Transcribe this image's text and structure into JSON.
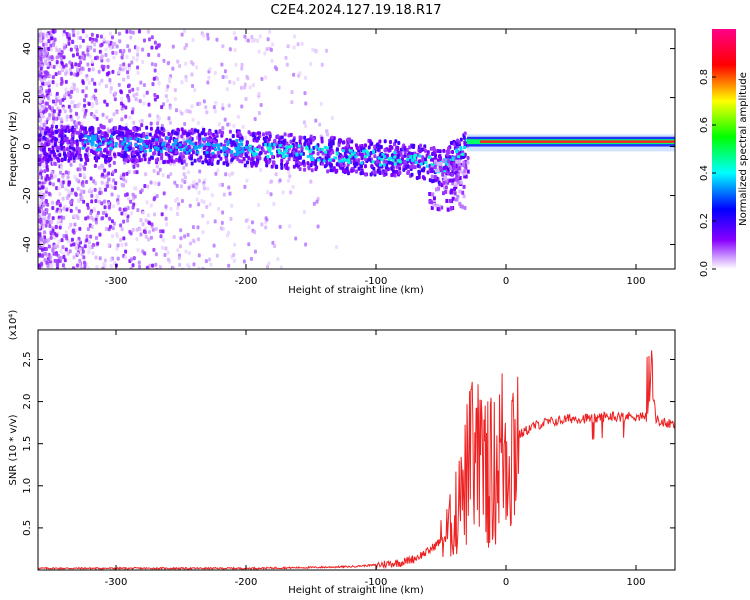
{
  "figure_title": "C2E4.2024.127.19.18.R17",
  "colors": {
    "snr_line": "#ee2222",
    "frame": "#000000"
  },
  "chart_data": [
    {
      "type": "heatmap",
      "title": "",
      "xlabel": "Height of straight line (km)",
      "ylabel": "Frequency (Hz)",
      "xlim": [
        -360,
        130
      ],
      "ylim": [
        -50,
        48
      ],
      "xticks": [
        -300,
        -200,
        -100,
        0,
        100
      ],
      "xtick_labels": [
        "-300",
        "-200",
        "-100",
        "0",
        "100"
      ],
      "yticks": [
        -40,
        -20,
        0,
        20,
        40
      ],
      "ytick_labels": [
        "-40",
        "-20",
        "0",
        "20",
        "40"
      ],
      "colorbar": {
        "label": "Normalized spectral amplitude",
        "range": [
          0,
          1
        ],
        "ticks": [
          0.0,
          0.2,
          0.4,
          0.6,
          0.8
        ],
        "tick_labels": [
          "0.0",
          "0.2",
          "0.4",
          "0.6",
          "0.8"
        ],
        "colormap": [
          "#ffffff",
          "#8800ff",
          "#0000ff",
          "#00ffff",
          "#00ff00",
          "#ffff00",
          "#ff0000",
          "#ff0088"
        ]
      },
      "ridge": [
        {
          "x": -360,
          "y": 2
        },
        {
          "x": -300,
          "y": 2
        },
        {
          "x": -250,
          "y": 1
        },
        {
          "x": -200,
          "y": 0
        },
        {
          "x": -150,
          "y": -2
        },
        {
          "x": -100,
          "y": -4
        },
        {
          "x": -80,
          "y": -4
        },
        {
          "x": -60,
          "y": -6
        },
        {
          "x": -50,
          "y": -8
        },
        {
          "x": -40,
          "y": -3
        },
        {
          "x": -30,
          "y": 1
        },
        {
          "x": -20,
          "y": 2
        },
        {
          "x": 0,
          "y": 2
        },
        {
          "x": 50,
          "y": 2
        },
        {
          "x": 80,
          "y": 2
        },
        {
          "x": 90,
          "y": 3
        },
        {
          "x": 100,
          "y": 1
        },
        {
          "x": 110,
          "y": 1
        },
        {
          "x": 130,
          "y": 1
        }
      ],
      "grid": false
    },
    {
      "type": "line",
      "title": "",
      "xlabel": "Height of straight line (km)",
      "ylabel": "SNR (10 * v/v)",
      "yscale_label": "(x10⁴)",
      "xlim": [
        -360,
        130
      ],
      "ylim": [
        0,
        2.85
      ],
      "xticks": [
        -300,
        -200,
        -100,
        0,
        100
      ],
      "xtick_labels": [
        "-300",
        "-200",
        "-100",
        "0",
        "100"
      ],
      "yticks": [
        0.5,
        1.0,
        1.5,
        2.0,
        2.5
      ],
      "ytick_labels": [
        "0.5",
        "1.0",
        "1.5",
        "2.0",
        "2.5"
      ],
      "series": [
        {
          "values_x": [
            -360,
            -300,
            -200,
            -150,
            -120,
            -100,
            -80,
            -70,
            -60,
            -50,
            -45,
            -40,
            -35,
            -30,
            -25,
            -20,
            -15,
            -10,
            -5,
            0,
            5,
            10,
            20,
            30,
            40,
            50,
            60,
            70,
            75,
            80,
            90,
            100,
            105,
            110,
            112,
            115,
            120,
            130
          ],
          "values_y": [
            0.02,
            0.02,
            0.02,
            0.03,
            0.04,
            0.06,
            0.09,
            0.14,
            0.22,
            0.35,
            0.45,
            0.6,
            0.8,
            1.1,
            1.4,
            1.2,
            1.3,
            1.1,
            1.4,
            1.45,
            1.55,
            1.6,
            1.7,
            1.75,
            1.77,
            1.8,
            1.8,
            1.8,
            1.82,
            1.83,
            1.82,
            1.83,
            1.83,
            1.8,
            2.6,
            1.8,
            1.75,
            1.72
          ]
        }
      ],
      "grid": false
    }
  ]
}
